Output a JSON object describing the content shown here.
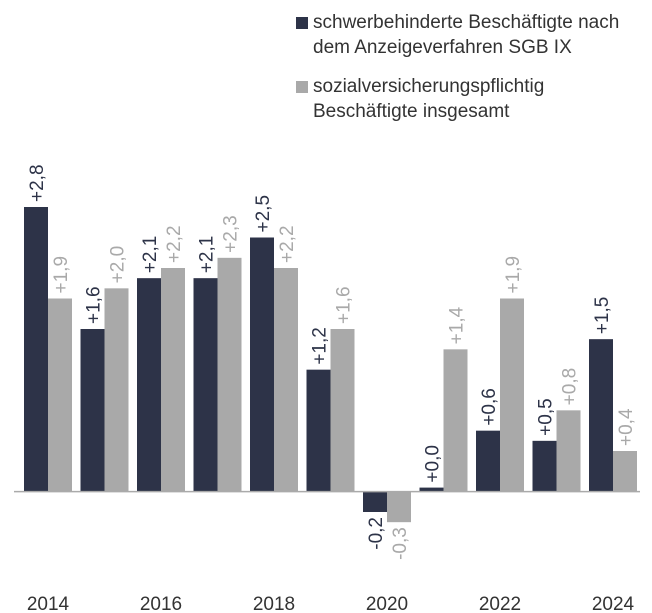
{
  "chart_data": {
    "type": "bar",
    "categories": [
      "2014",
      null,
      "2016",
      null,
      "2018",
      null,
      "2020",
      null,
      "2022",
      null,
      "2024"
    ],
    "series": [
      {
        "name": "schwerbehinderte Beschäftigte nach dem Anzeigeverfahren SGB IX",
        "color": "#2d3348",
        "values": [
          2.8,
          1.6,
          2.1,
          2.1,
          2.5,
          1.2,
          -0.2,
          0.04,
          0.6,
          0.5,
          1.5
        ],
        "value_labels": [
          "+2,8",
          "+1,6",
          "+2,1",
          "+2,1",
          "+2,5",
          "+1,2",
          "-0,2",
          "+0,0",
          "+0,6",
          "+0,5",
          "+1,5"
        ]
      },
      {
        "name": "sozialversicherungspflichtig Beschäftigte insgesamt",
        "color": "#a9a9a9",
        "values": [
          1.9,
          2.0,
          2.2,
          2.3,
          2.2,
          1.6,
          -0.3,
          1.4,
          1.9,
          0.8,
          0.4
        ],
        "value_labels": [
          "+1,9",
          "+2,0",
          "+2,2",
          "+2,3",
          "+2,2",
          "+1,6",
          "-0,3",
          "+1,4",
          "+1,9",
          "+0,8",
          "+0,4"
        ]
      }
    ],
    "ylim": [
      -0.8,
      3.4
    ],
    "legend": "top-right"
  }
}
